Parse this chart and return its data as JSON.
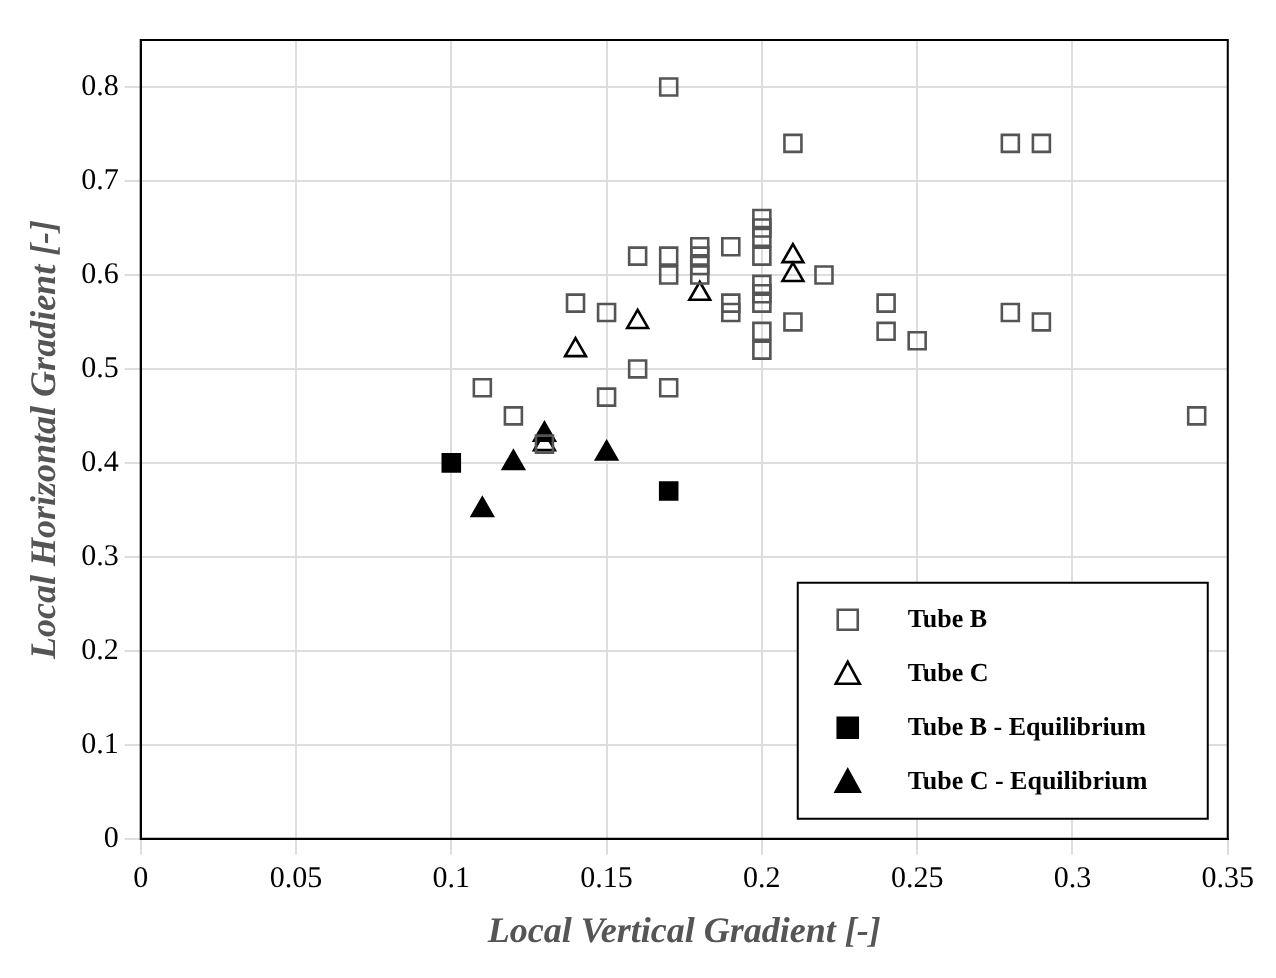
{
  "chart_data": {
    "type": "scatter",
    "xlabel": "Local Vertical Gradient [-]",
    "ylabel": "Local Horizontal Gradient [-]",
    "xlim": [
      0,
      0.35
    ],
    "xticks": [
      0,
      0.05,
      0.1,
      0.15,
      0.2,
      0.25,
      0.3,
      0.35
    ],
    "ylim": [
      0,
      0.85
    ],
    "yticks": [
      0,
      0.1,
      0.2,
      0.3,
      0.4,
      0.5,
      0.6,
      0.7,
      0.8
    ],
    "grid": true,
    "legend": "bottom right",
    "series": [
      {
        "name": "Tube B",
        "color": "#555555",
        "marker": "square",
        "x": [
          0.17,
          0.21,
          0.28,
          0.29,
          0.2,
          0.2,
          0.2,
          0.16,
          0.17,
          0.18,
          0.18,
          0.18,
          0.19,
          0.17,
          0.18,
          0.2,
          0.2,
          0.2,
          0.2,
          0.19,
          0.19,
          0.2,
          0.2,
          0.21,
          0.22,
          0.24,
          0.24,
          0.25,
          0.28,
          0.29,
          0.34,
          0.14,
          0.15,
          0.16,
          0.17,
          0.15,
          0.11,
          0.12,
          0.13
        ],
        "values": [
          0.8,
          0.74,
          0.74,
          0.74,
          0.66,
          0.65,
          0.64,
          0.62,
          0.62,
          0.63,
          0.62,
          0.61,
          0.63,
          0.6,
          0.6,
          0.62,
          0.59,
          0.58,
          0.57,
          0.57,
          0.56,
          0.54,
          0.52,
          0.55,
          0.6,
          0.57,
          0.54,
          0.53,
          0.56,
          0.55,
          0.45,
          0.57,
          0.56,
          0.5,
          0.48,
          0.47,
          0.48,
          0.45,
          0.42
        ]
      },
      {
        "name": "Tube C",
        "color": "#000000",
        "marker": "triangle",
        "x": [
          0.14,
          0.16,
          0.18,
          0.21,
          0.21,
          0.13
        ],
        "values": [
          0.52,
          0.55,
          0.58,
          0.62,
          0.6,
          0.42
        ]
      },
      {
        "name": "Tube B - Equilibrium",
        "color": "#000000",
        "marker": "square",
        "x": [
          0.1,
          0.17
        ],
        "values": [
          0.4,
          0.37
        ]
      },
      {
        "name": "Tube C - Equilibrium",
        "color": "#000000",
        "marker": "triangle",
        "x": [
          0.11,
          0.12,
          0.13,
          0.15
        ],
        "values": [
          0.35,
          0.4,
          0.43,
          0.41
        ]
      }
    ]
  }
}
